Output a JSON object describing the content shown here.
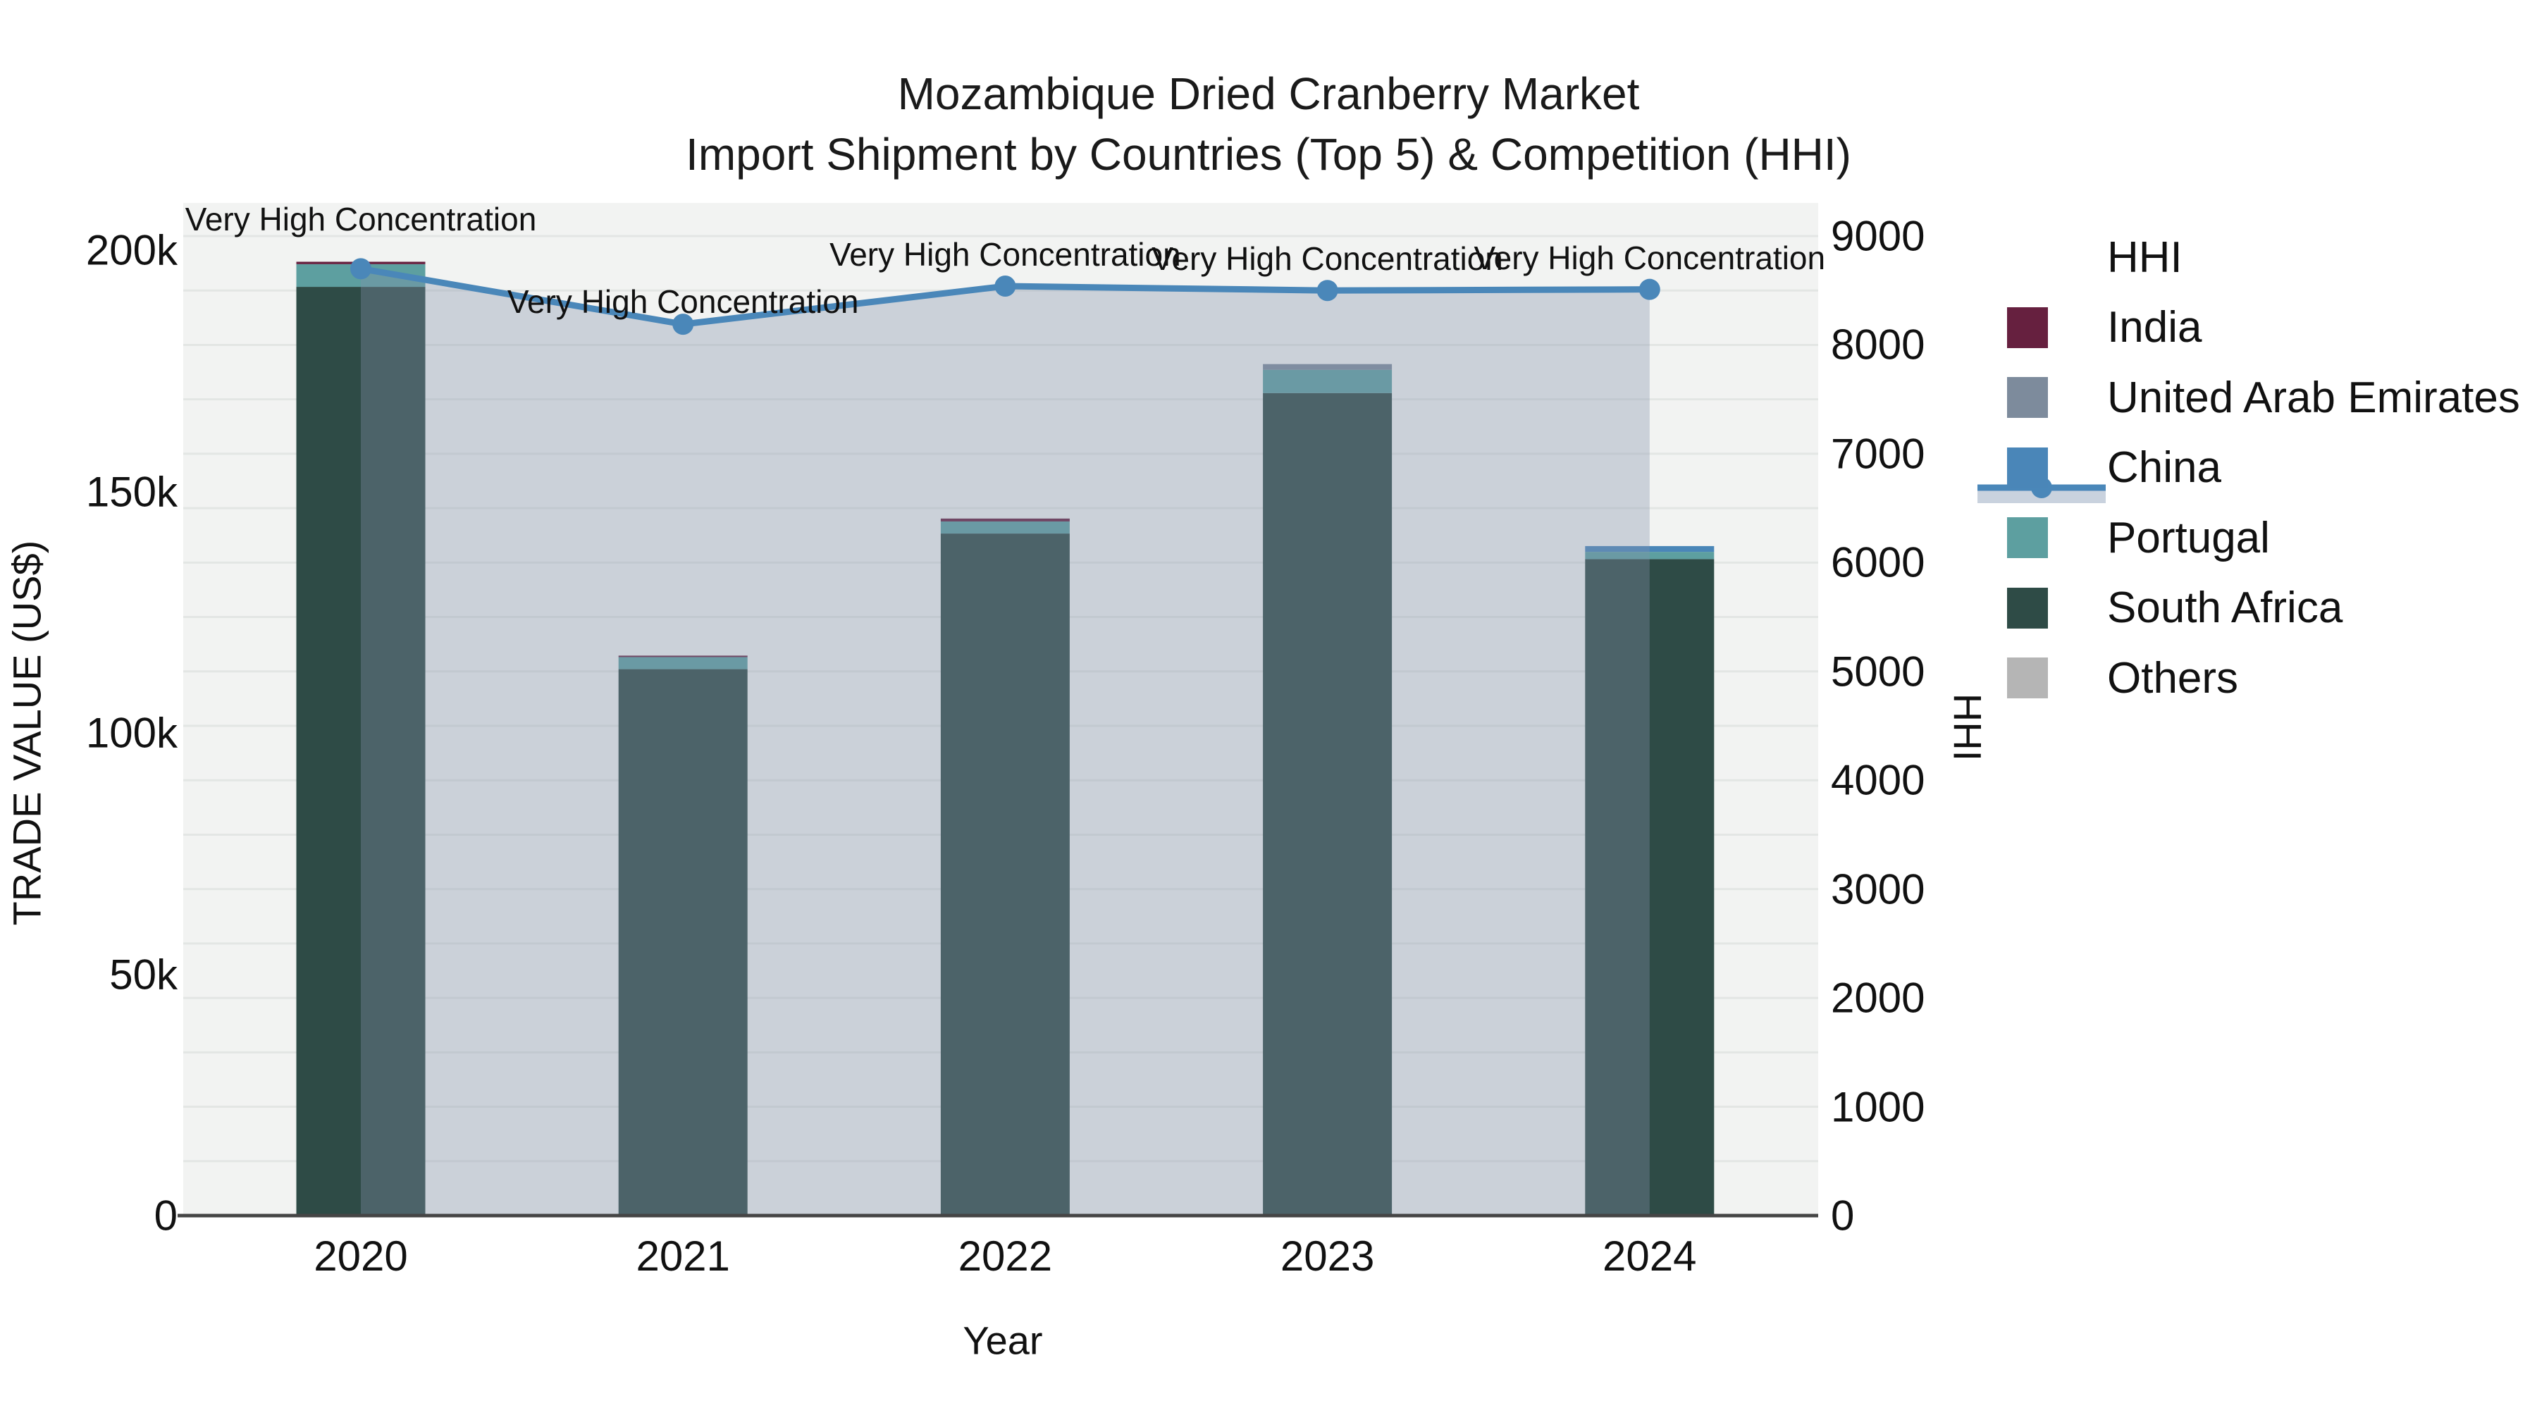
{
  "title": {
    "line1": "Mozambique Dried Cranberry Market",
    "line2": "Import Shipment by Countries (Top 5) & Competition (HHI)"
  },
  "axes": {
    "x_title": "Year",
    "y_left_title": "TRADE VALUE (US$)",
    "y_right_title": "HHI",
    "x_ticks": [
      "2020",
      "2021",
      "2022",
      "2023",
      "2024"
    ],
    "y_left_ticks": [
      {
        "label": "0",
        "value": 0
      },
      {
        "label": "50k",
        "value": 50000
      },
      {
        "label": "100k",
        "value": 100000
      },
      {
        "label": "150k",
        "value": 150000
      },
      {
        "label": "200k",
        "value": 200000
      }
    ],
    "y_right_ticks": [
      {
        "label": "0",
        "value": 0
      },
      {
        "label": "1000",
        "value": 1000
      },
      {
        "label": "2000",
        "value": 2000
      },
      {
        "label": "3000",
        "value": 3000
      },
      {
        "label": "4000",
        "value": 4000
      },
      {
        "label": "5000",
        "value": 5000
      },
      {
        "label": "6000",
        "value": 6000
      },
      {
        "label": "7000",
        "value": 7000
      },
      {
        "label": "8000",
        "value": 8000
      },
      {
        "label": "9000",
        "value": 9000
      }
    ]
  },
  "legend": {
    "items": [
      {
        "label": "HHI",
        "type": "line",
        "color": "#4A87B9",
        "band_color": "#C9D2DE"
      },
      {
        "label": "India",
        "type": "box",
        "color": "#66203F"
      },
      {
        "label": "United Arab Emirates",
        "type": "box",
        "color": "#7D8B9C"
      },
      {
        "label": "China",
        "type": "box",
        "color": "#4A86B8"
      },
      {
        "label": "Portugal",
        "type": "box",
        "color": "#5D9FA0"
      },
      {
        "label": "South Africa",
        "type": "box",
        "color": "#2E4B46"
      },
      {
        "label": "Others",
        "type": "box",
        "color": "#B5B5B5"
      }
    ]
  },
  "colors": {
    "plot_bg": "#F2F3F2",
    "grid": "#E3E6E4",
    "axis_line": "#454545",
    "hhi_line": "#4A87B9",
    "hhi_fill": "rgba(133,146,171,0.35)",
    "text": "#111111"
  },
  "chart_data": {
    "type": "stacked-bar+line",
    "title": "Mozambique Dried Cranberry Market — Import Shipment by Countries (Top 5) & Competition (HHI)",
    "xlabel": "Year",
    "ylabel_left": "TRADE VALUE (US$)",
    "ylabel_right": "HHI",
    "categories": [
      "2020",
      "2021",
      "2022",
      "2023",
      "2024"
    ],
    "y_left_range": [
      0,
      209500
    ],
    "y_right_range": [
      0,
      9300
    ],
    "grid": "on",
    "legend_position": "right",
    "series": [
      {
        "name": "India",
        "color": "#66203F",
        "values": [
          500,
          300,
          600,
          0,
          0
        ]
      },
      {
        "name": "United Arab Emirates",
        "color": "#7D8B9C",
        "values": [
          0,
          0,
          0,
          1200,
          0
        ]
      },
      {
        "name": "China",
        "color": "#4A86B8",
        "values": [
          0,
          0,
          0,
          0,
          1200
        ]
      },
      {
        "name": "Portugal",
        "color": "#5D9FA0",
        "values": [
          4700,
          2500,
          2500,
          4800,
          1500
        ]
      },
      {
        "name": "South Africa",
        "color": "#2E4B46",
        "values": [
          192400,
          113200,
          141300,
          170400,
          136000
        ]
      },
      {
        "name": "Others",
        "color": "#B5B5B5",
        "values": [
          0,
          0,
          0,
          0,
          0
        ]
      }
    ],
    "bar_totals": [
      197600,
      116000,
      144400,
      176400,
      138700
    ],
    "stack_order_bottom_to_top": [
      "Others",
      "South Africa",
      "Portugal",
      "China",
      "United Arab Emirates",
      "India"
    ],
    "line_series": {
      "name": "HHI",
      "axis": "right",
      "color": "#4A87B9",
      "values": [
        8700,
        8190,
        8540,
        8500,
        8510
      ]
    },
    "annotations": [
      {
        "category": "2020",
        "text": "Very High Concentration"
      },
      {
        "category": "2021",
        "text": "Very High Concentration"
      },
      {
        "category": "2022",
        "text": "Very High Concentration"
      },
      {
        "category": "2023",
        "text": "Very High Concentration"
      },
      {
        "category": "2024",
        "text": "Very High Concentration"
      }
    ]
  }
}
